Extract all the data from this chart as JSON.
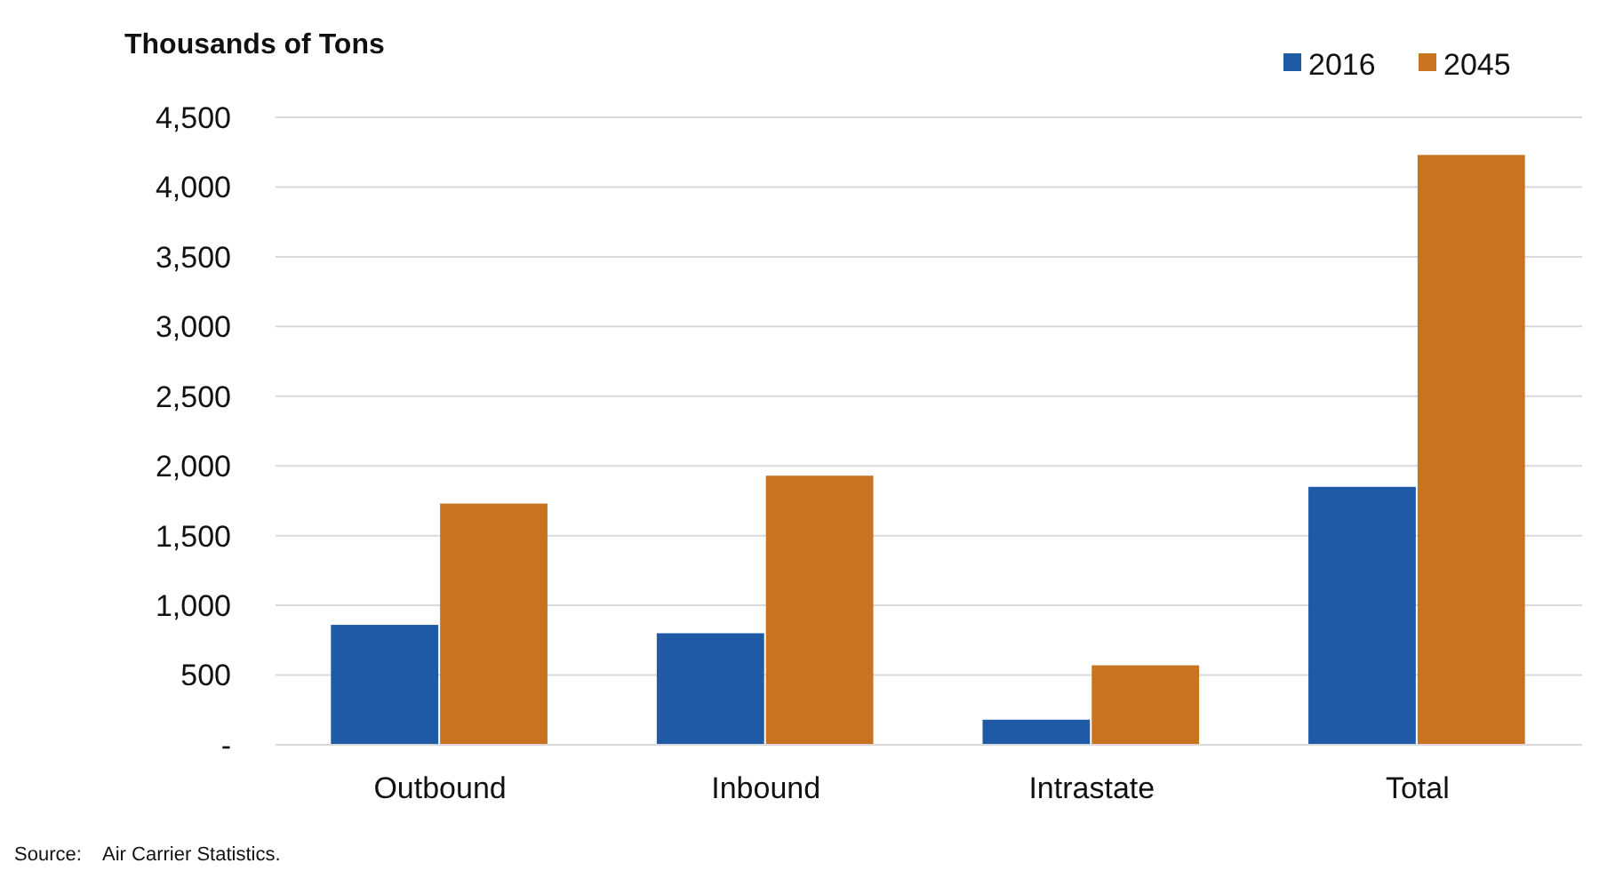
{
  "chart_data": {
    "type": "bar",
    "ylabel": "Thousands of Tons",
    "categories": [
      "Outbound",
      "Inbound",
      "Intrastate",
      "Total"
    ],
    "series": [
      {
        "name": "2016",
        "color": "#1f5aa6",
        "values": [
          860,
          800,
          180,
          1850
        ]
      },
      {
        "name": "2045",
        "color": "#c8731f",
        "values": [
          1730,
          1930,
          570,
          4230
        ]
      }
    ],
    "ylim": [
      0,
      4500
    ],
    "yticks": [
      {
        "value": 0,
        "label": "-"
      },
      {
        "value": 500,
        "label": "500"
      },
      {
        "value": 1000,
        "label": "1,000"
      },
      {
        "value": 1500,
        "label": "1,500"
      },
      {
        "value": 2000,
        "label": "2,000"
      },
      {
        "value": 2500,
        "label": "2,500"
      },
      {
        "value": 3000,
        "label": "3,000"
      },
      {
        "value": 3500,
        "label": "3,500"
      },
      {
        "value": 4000,
        "label": "4,000"
      },
      {
        "value": 4500,
        "label": "4,500"
      }
    ],
    "grid": "y",
    "legend": "top right",
    "annotations": [
      "Source:    Air Carrier Statistics."
    ]
  }
}
